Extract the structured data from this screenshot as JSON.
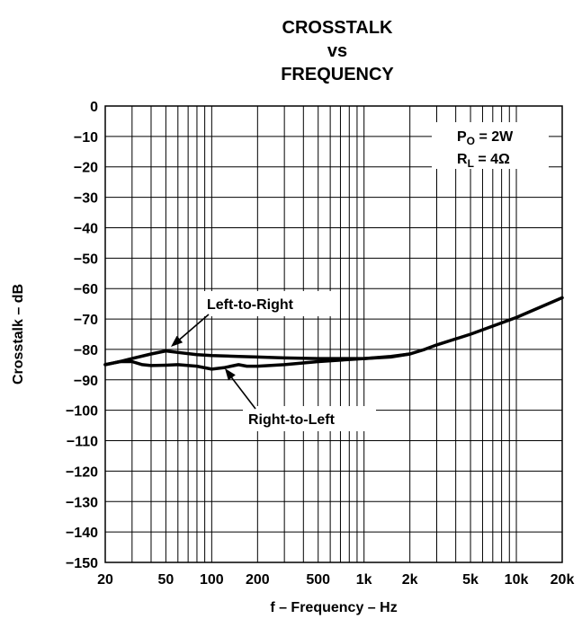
{
  "chart_data": {
    "type": "line",
    "title_lines": [
      "CROSSTALK",
      "vs",
      "FREQUENCY"
    ],
    "xlabel": "f – Frequency – Hz",
    "ylabel": "Crosstalk – dB",
    "x_scale": "log",
    "xlim": [
      20,
      20000
    ],
    "ylim": [
      -150,
      0
    ],
    "grid": true,
    "x_ticks": [
      {
        "value": 20,
        "label": "20"
      },
      {
        "value": 50,
        "label": "50"
      },
      {
        "value": 100,
        "label": "100"
      },
      {
        "value": 200,
        "label": "200"
      },
      {
        "value": 500,
        "label": "500"
      },
      {
        "value": 1000,
        "label": "1k"
      },
      {
        "value": 2000,
        "label": "2k"
      },
      {
        "value": 5000,
        "label": "5k"
      },
      {
        "value": 10000,
        "label": "10k"
      },
      {
        "value": 20000,
        "label": "20k"
      }
    ],
    "y_ticks": [
      0,
      -10,
      -20,
      -30,
      -40,
      -50,
      -60,
      -70,
      -80,
      -90,
      -100,
      -110,
      -120,
      -130,
      -140,
      -150
    ],
    "y_tick_labels": [
      "0",
      "−10",
      "−20",
      "−30",
      "−40",
      "−50",
      "−60",
      "−70",
      "−80",
      "−90",
      "−100",
      "−110",
      "−120",
      "−130",
      "−140",
      "−150"
    ],
    "conditions": {
      "line1": {
        "main": "P",
        "sub": "O",
        "rest": " = 2W"
      },
      "line2": {
        "main": "R",
        "sub": "L",
        "rest": " = 4Ω"
      }
    },
    "series": [
      {
        "name": "Left-to-Right",
        "x": [
          20,
          25,
          30,
          40,
          50,
          60,
          80,
          100,
          150,
          200,
          300,
          500,
          700,
          1000,
          1500,
          2000,
          2500,
          3000,
          5000,
          10000,
          20000
        ],
        "y": [
          -85,
          -84,
          -83,
          -81.5,
          -80.5,
          -81,
          -81.7,
          -82,
          -82.3,
          -82.5,
          -82.8,
          -83,
          -83,
          -83,
          -82.5,
          -81.5,
          -80,
          -78.5,
          -75,
          -69.5,
          -63
        ]
      },
      {
        "name": "Right-to-Left",
        "x": [
          20,
          25,
          30,
          35,
          40,
          50,
          60,
          80,
          100,
          120,
          150,
          170,
          200,
          300,
          500,
          1000,
          1500,
          2000
        ],
        "y": [
          -85,
          -84,
          -84,
          -85,
          -85.3,
          -85.2,
          -85,
          -85.5,
          -86.5,
          -86,
          -85,
          -85.5,
          -85.5,
          -85,
          -84,
          -83,
          -82.3,
          -81.5
        ]
      }
    ],
    "annotations": [
      {
        "text": "Left-to-Right",
        "series": "Left-to-Right",
        "points_to": {
          "x": 55,
          "y": -81
        }
      },
      {
        "text": "Right-to-Left",
        "series": "Right-to-Left",
        "points_to": {
          "x": 125,
          "y": -86.5
        }
      }
    ]
  }
}
